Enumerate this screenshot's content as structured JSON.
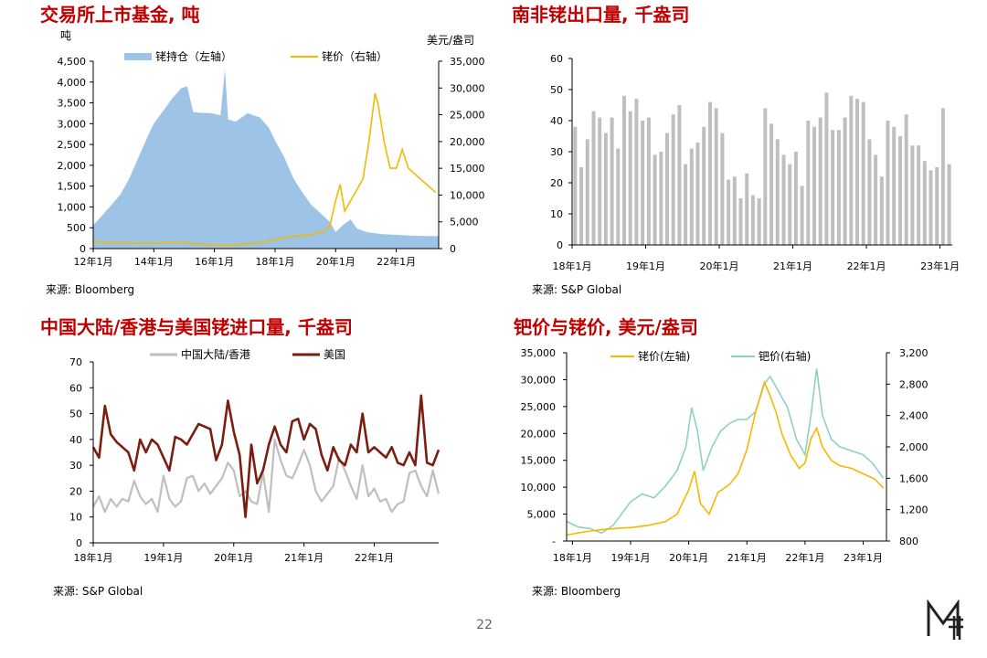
{
  "page_number": "22",
  "colors": {
    "title": "#c00000",
    "etf_fill": "#9dc3e6",
    "price_gold": "#f5b800",
    "bar_gray": "#bfbfbf",
    "china_gray": "#bfbfbf",
    "us_brown": "#7b1e12",
    "pd_green": "#8fd1c0"
  },
  "chart_data": [
    {
      "id": "etf",
      "type": "area",
      "title": "交易所上市基金, 吨",
      "source": "来源: Bloomberg",
      "y_left_unit": "吨",
      "y_right_unit": "美元/盎司",
      "x_tick_labels": [
        "12年1月",
        "14年1月",
        "16年1月",
        "18年1月",
        "20年1月",
        "22年1月"
      ],
      "x_ticks": [
        2012,
        2014,
        2016,
        2018,
        2020,
        2022
      ],
      "xlim": [
        2012,
        2023.4
      ],
      "y_left_ticks": [
        "0",
        "500",
        "1,000",
        "1,500",
        "2,000",
        "2,500",
        "3,000",
        "3,500",
        "4,000",
        "4,500"
      ],
      "ylim_left": [
        0,
        4500
      ],
      "y_right_ticks": [
        "0",
        "5,000",
        "10,000",
        "15,000",
        "20,000",
        "25,000",
        "30,000",
        "35,000"
      ],
      "ylim_right": [
        0,
        35000
      ],
      "series": [
        {
          "name": "铑持仓（左轴）",
          "axis": "left",
          "kind": "area",
          "points": [
            [
              2012.0,
              560
            ],
            [
              2012.3,
              800
            ],
            [
              2012.6,
              1050
            ],
            [
              2012.9,
              1300
            ],
            [
              2013.2,
              1700
            ],
            [
              2013.5,
              2200
            ],
            [
              2013.8,
              2700
            ],
            [
              2014.0,
              3000
            ],
            [
              2014.3,
              3300
            ],
            [
              2014.6,
              3600
            ],
            [
              2014.9,
              3850
            ],
            [
              2015.1,
              3900
            ],
            [
              2015.3,
              3280
            ],
            [
              2015.6,
              3260
            ],
            [
              2015.9,
              3250
            ],
            [
              2016.2,
              3200
            ],
            [
              2016.35,
              4300
            ],
            [
              2016.45,
              3100
            ],
            [
              2016.7,
              3050
            ],
            [
              2016.9,
              3150
            ],
            [
              2017.1,
              3250
            ],
            [
              2017.3,
              3200
            ],
            [
              2017.5,
              3150
            ],
            [
              2017.8,
              2900
            ],
            [
              2018.0,
              2600
            ],
            [
              2018.3,
              2200
            ],
            [
              2018.6,
              1700
            ],
            [
              2018.9,
              1350
            ],
            [
              2019.2,
              1050
            ],
            [
              2019.5,
              850
            ],
            [
              2019.8,
              650
            ],
            [
              2020.0,
              400
            ],
            [
              2020.3,
              600
            ],
            [
              2020.5,
              700
            ],
            [
              2020.7,
              480
            ],
            [
              2021.0,
              400
            ],
            [
              2021.5,
              350
            ],
            [
              2022.0,
              330
            ],
            [
              2022.5,
              310
            ],
            [
              2023.0,
              300
            ],
            [
              2023.4,
              300
            ]
          ]
        },
        {
          "name": "铑价（右轴）",
          "axis": "right",
          "kind": "line",
          "points": [
            [
              2012.0,
              1400
            ],
            [
              2012.5,
              1100
            ],
            [
              2013.0,
              1100
            ],
            [
              2013.5,
              1000
            ],
            [
              2014.0,
              1000
            ],
            [
              2014.6,
              1200
            ],
            [
              2015.0,
              1150
            ],
            [
              2015.5,
              800
            ],
            [
              2016.0,
              650
            ],
            [
              2016.5,
              650
            ],
            [
              2017.0,
              800
            ],
            [
              2017.5,
              1100
            ],
            [
              2018.0,
              1700
            ],
            [
              2018.5,
              2200
            ],
            [
              2019.0,
              2500
            ],
            [
              2019.5,
              3000
            ],
            [
              2019.8,
              4000
            ],
            [
              2020.0,
              9000
            ],
            [
              2020.15,
              12000
            ],
            [
              2020.3,
              7000
            ],
            [
              2020.6,
              10000
            ],
            [
              2020.9,
              13000
            ],
            [
              2021.1,
              20000
            ],
            [
              2021.3,
              29000
            ],
            [
              2021.4,
              27000
            ],
            [
              2021.6,
              20000
            ],
            [
              2021.8,
              15000
            ],
            [
              2022.0,
              15000
            ],
            [
              2022.2,
              18500
            ],
            [
              2022.4,
              15000
            ],
            [
              2022.6,
              14000
            ],
            [
              2022.8,
              13000
            ],
            [
              2023.0,
              12000
            ],
            [
              2023.3,
              10500
            ]
          ]
        }
      ],
      "legend": "top"
    },
    {
      "id": "sa_exports",
      "type": "bar",
      "title": "南非铑出口量, 千盎司",
      "source": "来源: S&P Global",
      "x_tick_labels": [
        "18年1月",
        "19年1月",
        "20年1月",
        "21年1月",
        "22年1月",
        "23年1月"
      ],
      "y_ticks": [
        "0",
        "10",
        "20",
        "30",
        "40",
        "50",
        "60"
      ],
      "ylim": [
        0,
        60
      ],
      "values": [
        38,
        25,
        34,
        43,
        41,
        36,
        41,
        31,
        48,
        43,
        47,
        40,
        41,
        29,
        30,
        36,
        42,
        45,
        26,
        31,
        33,
        38,
        46,
        44,
        36,
        21,
        22,
        15,
        23,
        16,
        15,
        44,
        39,
        34,
        29,
        26,
        30,
        19,
        40,
        38,
        41,
        49,
        37,
        37,
        41,
        48,
        47,
        46,
        34,
        29,
        22,
        40,
        38,
        35,
        42,
        32,
        32,
        27,
        24,
        25,
        44,
        26
      ],
      "first_month": "2018-01"
    },
    {
      "id": "imports",
      "type": "line",
      "title": "中国大陆/香港与美国铑进口量, 千盎司",
      "source": "来源: S&P Global",
      "x_tick_labels": [
        "18年1月",
        "19年1月",
        "20年1月",
        "21年1月",
        "22年1月"
      ],
      "y_ticks": [
        "0",
        "10",
        "20",
        "30",
        "40",
        "50",
        "60",
        "70"
      ],
      "ylim": [
        0,
        70
      ],
      "legend": "top",
      "first_month": "2018-01",
      "series": [
        {
          "name": "中国大陆/香港",
          "color_key": "china_gray",
          "values": [
            14,
            18,
            12,
            17,
            14,
            17,
            16,
            24,
            18,
            15,
            17,
            12,
            26,
            17,
            14,
            16,
            25,
            26,
            20,
            23,
            19,
            22,
            25,
            31,
            28,
            18,
            20,
            16,
            15,
            27,
            12,
            40,
            32,
            26,
            25,
            30,
            36,
            30,
            20,
            16,
            19,
            22,
            33,
            28,
            22,
            17,
            30,
            18,
            21,
            16,
            17,
            12,
            15,
            16,
            27,
            28,
            22,
            18,
            28,
            19
          ]
        },
        {
          "name": "美国",
          "color_key": "us_brown",
          "values": [
            37,
            33,
            53,
            42,
            39,
            37,
            35,
            28,
            40,
            35,
            40,
            38,
            33,
            28,
            41,
            40,
            38,
            42,
            46,
            45,
            44,
            32,
            38,
            55,
            43,
            34,
            10,
            38,
            23,
            28,
            38,
            45,
            38,
            35,
            47,
            48,
            40,
            46,
            44,
            34,
            28,
            37,
            32,
            30,
            38,
            35,
            50,
            35,
            37,
            35,
            33,
            37,
            31,
            30,
            35,
            30,
            57,
            31,
            30,
            36
          ]
        }
      ]
    },
    {
      "id": "pd_rh",
      "type": "line",
      "title": "钯价与铑价, 美元/盎司",
      "source": "来源: Bloomberg",
      "x_tick_labels": [
        "18年1月",
        "19年1月",
        "20年1月",
        "21年1月",
        "22年1月",
        "23年1月"
      ],
      "x_ticks": [
        2018,
        2019,
        2020,
        2021,
        2022,
        2023
      ],
      "xlim": [
        2017.9,
        2023.4
      ],
      "y_left_ticks": [
        "-",
        "5,000",
        "10,000",
        "15,000",
        "20,000",
        "25,000",
        "30,000",
        "35,000"
      ],
      "ylim_left": [
        0,
        35000
      ],
      "y_right_ticks": [
        "800",
        "1,200",
        "1,600",
        "2,000",
        "2,400",
        "2,800",
        "3,200"
      ],
      "ylim_right": [
        800,
        3200
      ],
      "legend": "top",
      "series": [
        {
          "name": "铑价(左轴)",
          "axis": "left",
          "color_key": "price_gold",
          "points": [
            [
              2017.9,
              1100
            ],
            [
              2018.2,
              1700
            ],
            [
              2018.5,
              2100
            ],
            [
              2018.8,
              2400
            ],
            [
              2019.0,
              2500
            ],
            [
              2019.3,
              2900
            ],
            [
              2019.6,
              3600
            ],
            [
              2019.8,
              5000
            ],
            [
              2020.0,
              9500
            ],
            [
              2020.1,
              13000
            ],
            [
              2020.2,
              7000
            ],
            [
              2020.35,
              5000
            ],
            [
              2020.5,
              9000
            ],
            [
              2020.7,
              10500
            ],
            [
              2020.85,
              12500
            ],
            [
              2021.0,
              17000
            ],
            [
              2021.15,
              24000
            ],
            [
              2021.3,
              29500
            ],
            [
              2021.4,
              27000
            ],
            [
              2021.5,
              24000
            ],
            [
              2021.6,
              20000
            ],
            [
              2021.75,
              16000
            ],
            [
              2021.9,
              13500
            ],
            [
              2022.0,
              14500
            ],
            [
              2022.1,
              19000
            ],
            [
              2022.2,
              21000
            ],
            [
              2022.3,
              17500
            ],
            [
              2022.45,
              15000
            ],
            [
              2022.6,
              14000
            ],
            [
              2022.8,
              13500
            ],
            [
              2023.0,
              12500
            ],
            [
              2023.2,
              11500
            ],
            [
              2023.35,
              9800
            ]
          ]
        },
        {
          "name": "钯价(右轴)",
          "axis": "right",
          "color_key": "pd_green",
          "points": [
            [
              2017.9,
              1050
            ],
            [
              2018.1,
              980
            ],
            [
              2018.3,
              960
            ],
            [
              2018.5,
              900
            ],
            [
              2018.7,
              1000
            ],
            [
              2018.9,
              1200
            ],
            [
              2019.0,
              1300
            ],
            [
              2019.2,
              1400
            ],
            [
              2019.4,
              1350
            ],
            [
              2019.6,
              1500
            ],
            [
              2019.8,
              1700
            ],
            [
              2019.95,
              2000
            ],
            [
              2020.05,
              2500
            ],
            [
              2020.15,
              2200
            ],
            [
              2020.25,
              1700
            ],
            [
              2020.4,
              2000
            ],
            [
              2020.55,
              2200
            ],
            [
              2020.7,
              2300
            ],
            [
              2020.85,
              2350
            ],
            [
              2021.0,
              2350
            ],
            [
              2021.15,
              2450
            ],
            [
              2021.3,
              2800
            ],
            [
              2021.4,
              2900
            ],
            [
              2021.55,
              2700
            ],
            [
              2021.7,
              2500
            ],
            [
              2021.85,
              2100
            ],
            [
              2022.0,
              1900
            ],
            [
              2022.1,
              2400
            ],
            [
              2022.2,
              3000
            ],
            [
              2022.3,
              2400
            ],
            [
              2022.45,
              2100
            ],
            [
              2022.6,
              2000
            ],
            [
              2022.8,
              1950
            ],
            [
              2023.0,
              1900
            ],
            [
              2023.15,
              1800
            ],
            [
              2023.35,
              1600
            ]
          ]
        }
      ]
    }
  ]
}
